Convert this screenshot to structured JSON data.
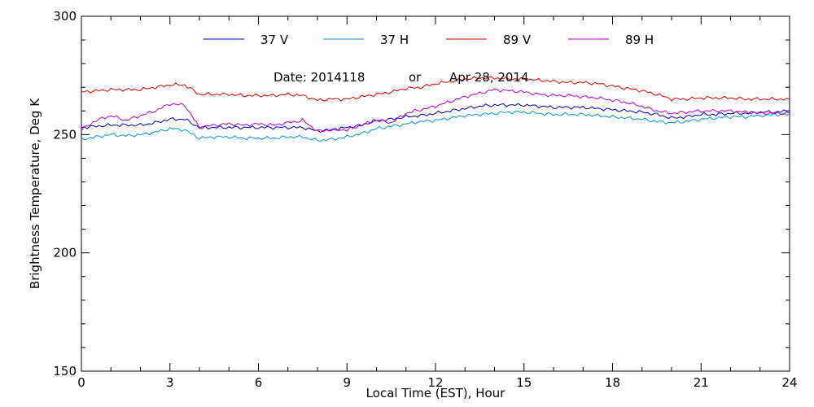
{
  "chart_data": {
    "type": "line",
    "xlabel": "Local Time (EST), Hour",
    "ylabel": "Brightness Temperature, Deg K",
    "xlim": [
      0,
      24
    ],
    "ylim": [
      150,
      300
    ],
    "x_ticks": [
      0,
      3,
      6,
      9,
      12,
      15,
      18,
      21,
      24
    ],
    "y_ticks": [
      150,
      200,
      250,
      300
    ],
    "grid": false,
    "legend_position": "top",
    "annotation": {
      "date_label": "Date: 2014118",
      "or_label": "or",
      "date_long": "Apr 28, 2014"
    },
    "series": [
      {
        "name": "37 V",
        "color": "#0000bb",
        "x": [
          0,
          0.5,
          1,
          1.5,
          2,
          2.5,
          3,
          3.5,
          4,
          4.5,
          5,
          5.5,
          6,
          6.5,
          7,
          7.5,
          8,
          8.5,
          9,
          9.5,
          10,
          10.5,
          11,
          11.5,
          12,
          12.5,
          13,
          13.5,
          14,
          14.5,
          15,
          15.5,
          16,
          16.5,
          17,
          17.5,
          18,
          18.5,
          19,
          19.5,
          20,
          20.5,
          21,
          21.5,
          22,
          22.5,
          23,
          23.5,
          24
        ],
        "values": [
          253,
          253.5,
          254,
          254,
          254,
          255,
          256.5,
          256.5,
          253,
          253,
          253,
          253,
          253,
          253,
          253,
          253,
          251.5,
          252,
          253,
          254,
          256,
          256.5,
          257.5,
          258,
          259,
          260,
          261,
          262,
          262.5,
          262.5,
          262.5,
          262,
          261.5,
          261.5,
          261.5,
          261,
          260.5,
          260,
          259.5,
          258.5,
          257,
          257.5,
          258.5,
          258.5,
          259,
          259,
          259.5,
          259.5,
          260
        ]
      },
      {
        "name": "37 H",
        "color": "#0099cc",
        "x": [
          0,
          0.5,
          1,
          1.5,
          2,
          2.5,
          3,
          3.5,
          4,
          4.5,
          5,
          5.5,
          6,
          6.5,
          7,
          7.5,
          8,
          8.5,
          9,
          9.5,
          10,
          10.5,
          11,
          11.5,
          12,
          12.5,
          13,
          13.5,
          14,
          14.5,
          15,
          15.5,
          16,
          16.5,
          17,
          17.5,
          18,
          18.5,
          19,
          19.5,
          20,
          20.5,
          21,
          21.5,
          22,
          22.5,
          23,
          23.5,
          24
        ],
        "values": [
          248,
          249,
          250,
          249.5,
          250,
          251,
          252.5,
          252,
          248.5,
          249,
          249,
          248.5,
          248.5,
          248.5,
          249,
          249,
          247.5,
          248,
          249,
          250.5,
          252.5,
          253.5,
          254.5,
          255.5,
          256,
          257,
          258,
          258.5,
          259,
          259.5,
          259.5,
          259,
          258.5,
          258.5,
          258.5,
          258,
          257.5,
          257,
          256.5,
          255.5,
          255,
          255.5,
          256.5,
          257,
          257.5,
          257.5,
          258,
          258.5,
          258.5
        ]
      },
      {
        "name": "89 V",
        "color": "#dd0000",
        "x": [
          0,
          0.5,
          1,
          1.5,
          2,
          2.5,
          3,
          3.5,
          4,
          4.5,
          5,
          5.5,
          6,
          6.5,
          7,
          7.5,
          8,
          8.5,
          9,
          9.5,
          10,
          10.5,
          11,
          11.5,
          12,
          12.5,
          13,
          13.5,
          14,
          14.5,
          15,
          15.5,
          16,
          16.5,
          17,
          17.5,
          18,
          18.5,
          19,
          19.5,
          20,
          20.5,
          21,
          21.5,
          22,
          22.5,
          23,
          23.5,
          24
        ],
        "values": [
          268,
          268.5,
          269,
          269,
          269,
          270,
          271,
          271,
          267,
          267,
          267,
          266.5,
          266.5,
          266.5,
          267,
          266.5,
          264.5,
          265,
          265,
          266,
          267,
          268,
          269.5,
          270,
          271.5,
          272.5,
          273.5,
          274,
          274,
          273.5,
          273.5,
          273,
          272.5,
          272,
          272,
          271.5,
          270.5,
          269.5,
          268.5,
          267,
          265,
          265,
          265.5,
          265.5,
          265.5,
          265,
          265,
          265,
          265
        ]
      },
      {
        "name": "89 H",
        "color": "#bb00cc",
        "x": [
          0,
          0.5,
          1,
          1.5,
          2,
          2.5,
          3,
          3.5,
          4,
          4.5,
          5,
          5.5,
          6,
          6.5,
          7,
          7.5,
          8,
          8.5,
          9,
          9.5,
          10,
          10.5,
          11,
          11.5,
          12,
          12.5,
          13,
          13.5,
          14,
          14.5,
          15,
          15.5,
          16,
          16.5,
          17,
          17.5,
          18,
          18.5,
          19,
          19.5,
          20,
          20.5,
          21,
          21.5,
          22,
          22.5,
          23,
          23.5,
          24
        ],
        "values": [
          252,
          256,
          258,
          256,
          258,
          260,
          263,
          262.5,
          253,
          254,
          254.5,
          254,
          254.5,
          254,
          255,
          256,
          251.5,
          252,
          252,
          254,
          256,
          255,
          259,
          260.5,
          262,
          264,
          266,
          267.5,
          269,
          268.5,
          268,
          267,
          266.5,
          266.5,
          266,
          265.5,
          264.5,
          263.5,
          262,
          260,
          259,
          259.5,
          260,
          260,
          260,
          259.5,
          259,
          259,
          259
        ]
      }
    ]
  }
}
